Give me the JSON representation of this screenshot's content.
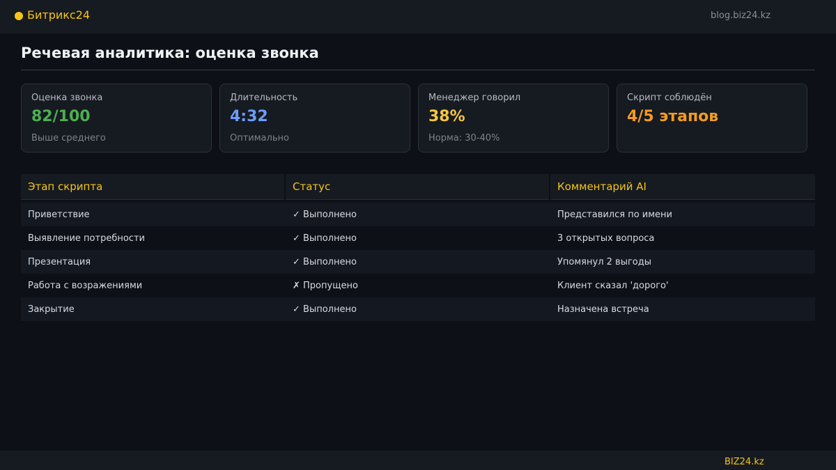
{
  "header": {
    "brand_name": "Битрикс24",
    "url": "blog.biz24.kz",
    "colors": {
      "brand": "#f5c518"
    }
  },
  "page": {
    "title": "Речевая аналитика: оценка звонка"
  },
  "cards": [
    {
      "label": "Оценка звонка",
      "value": "82/100",
      "note": "Выше среднего",
      "color": "#4caf50"
    },
    {
      "label": "Длительность",
      "value": "4:32",
      "note": "Оптимально",
      "color": "#6b9cff"
    },
    {
      "label": "Менеджер говорил",
      "value": "38%",
      "note": "Норма: 30-40%",
      "color": "#f5c542"
    },
    {
      "label": "Скрипт соблюдён",
      "value": "4/5 этапов",
      "note": "",
      "color": "#f39c1f"
    }
  ],
  "table": {
    "headers": [
      "Этап скрипта",
      "Статус",
      "Комментарий AI"
    ],
    "rows": [
      [
        "Приветствие",
        "✓ Выполнено",
        "Представился по имени"
      ],
      [
        "Выявление потребности",
        "✓ Выполнено",
        "3 открытых вопроса"
      ],
      [
        "Презентация",
        "✓ Выполнено",
        "Упомянул 2 выгоды"
      ],
      [
        "Работа с возражениями",
        "✗ Пропущено",
        "Клиент сказал 'дорого'"
      ],
      [
        "Закрытие",
        "✓ Выполнено",
        "Назначена встреча"
      ]
    ]
  },
  "footer": {
    "brand": "BIZ24.kz"
  }
}
